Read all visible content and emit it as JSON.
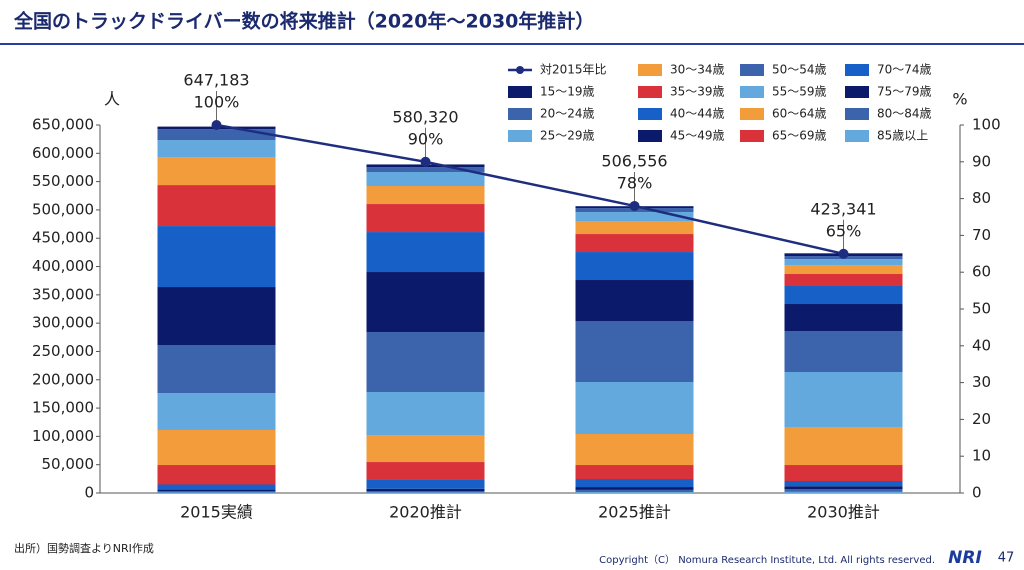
{
  "chart_data": {
    "type": "bar",
    "title": "全国のトラックドライバー数の将来推計（2020年～2030年推計）",
    "categories": [
      "2015実績",
      "2020推計",
      "2025推計",
      "2030推計"
    ],
    "ylabel": "人",
    "y2label": "%",
    "ylim": [
      0,
      650000
    ],
    "yticks": [
      0,
      {
        "value": 50000,
        "label": "50,000"
      },
      {
        "value": 100000,
        "label": "100,000"
      },
      {
        "value": 150000,
        "label": "150,000"
      },
      {
        "value": 200000,
        "label": "200,000"
      },
      {
        "value": 250000,
        "label": "250,000"
      },
      {
        "value": 300000,
        "label": "300,000"
      },
      {
        "value": 350000,
        "label": "350,000"
      },
      {
        "value": 400000,
        "label": "400,000"
      },
      {
        "value": 450000,
        "label": "450,000"
      },
      {
        "value": 500000,
        "label": "500,000"
      },
      {
        "value": 550000,
        "label": "550,000"
      },
      {
        "value": 600000,
        "label": "600,000"
      },
      {
        "value": 650000,
        "label": "650,000"
      }
    ],
    "y2lim": [
      0,
      100
    ],
    "y2ticks": [
      0,
      10,
      20,
      30,
      40,
      50,
      60,
      70,
      80,
      90,
      100
    ],
    "grid": false,
    "stacked": true,
    "totals": [
      647183,
      580320,
      506556,
      423341
    ],
    "total_labels": [
      "647,183",
      "580,320",
      "506,556",
      "423,341"
    ],
    "series": [
      {
        "name": "対2015年比",
        "type": "line",
        "axis": "y2",
        "color": "#1f2d80",
        "values": [
          100,
          90,
          78,
          65
        ],
        "value_labels": [
          "100%",
          "90%",
          "78%",
          "65%"
        ]
      },
      {
        "name": "15～19歳",
        "color": "#0b1a6b",
        "values": [
          4383,
          4620,
          3256,
          4841
        ]
      },
      {
        "name": "20～24歳",
        "color": "#3b64ad",
        "values": [
          19400,
          8800,
          7100,
          5300
        ]
      },
      {
        "name": "25～29歳",
        "color": "#63a9dd",
        "values": [
          30000,
          24700,
          15800,
          10600
        ]
      },
      {
        "name": "30～34歳",
        "color": "#f39c3b",
        "values": [
          49500,
          31800,
          23000,
          15800
        ]
      },
      {
        "name": "35～39歳",
        "color": "#d9323a",
        "values": [
          72400,
          49500,
          31800,
          21200
        ]
      },
      {
        "name": "40～44歳",
        "color": "#1660c8",
        "values": [
          107700,
          70600,
          49400,
          31800
        ]
      },
      {
        "name": "45～49歳",
        "color": "#0b1a6b",
        "values": [
          102400,
          106000,
          72400,
          47700
        ]
      },
      {
        "name": "50～54歳",
        "color": "#3b64ad",
        "values": [
          84800,
          105900,
          107800,
          72400
        ]
      },
      {
        "name": "55～59歳",
        "color": "#63a9dd",
        "values": [
          65300,
          76000,
          91800,
          97100
        ]
      },
      {
        "name": "60～64歳",
        "color": "#f39c3b",
        "values": [
          61900,
          47700,
          54800,
          67200
        ]
      },
      {
        "name": "65～69歳",
        "color": "#d9323a",
        "values": [
          34400,
          31700,
          24700,
          28200
        ]
      },
      {
        "name": "70～74歳",
        "color": "#1660c8",
        "values": [
          9000,
          15500,
          14200,
          9200
        ]
      },
      {
        "name": "75～79歳",
        "color": "#0b1a6b",
        "values": [
          3000,
          4000,
          5000,
          5000
        ]
      },
      {
        "name": "80～84歳",
        "color": "#3b64ad",
        "values": [
          2000,
          2500,
          4000,
          5000
        ]
      },
      {
        "name": "85歳以上",
        "color": "#63a9dd",
        "values": [
          1000,
          1000,
          1500,
          2000
        ]
      }
    ]
  },
  "page": {
    "source": "出所）国勢調査よりNRI作成",
    "copyright": "Copyright（C） Nomura Research Institute, Ltd. All rights reserved.",
    "logo": "NRI",
    "page_number": "47"
  }
}
